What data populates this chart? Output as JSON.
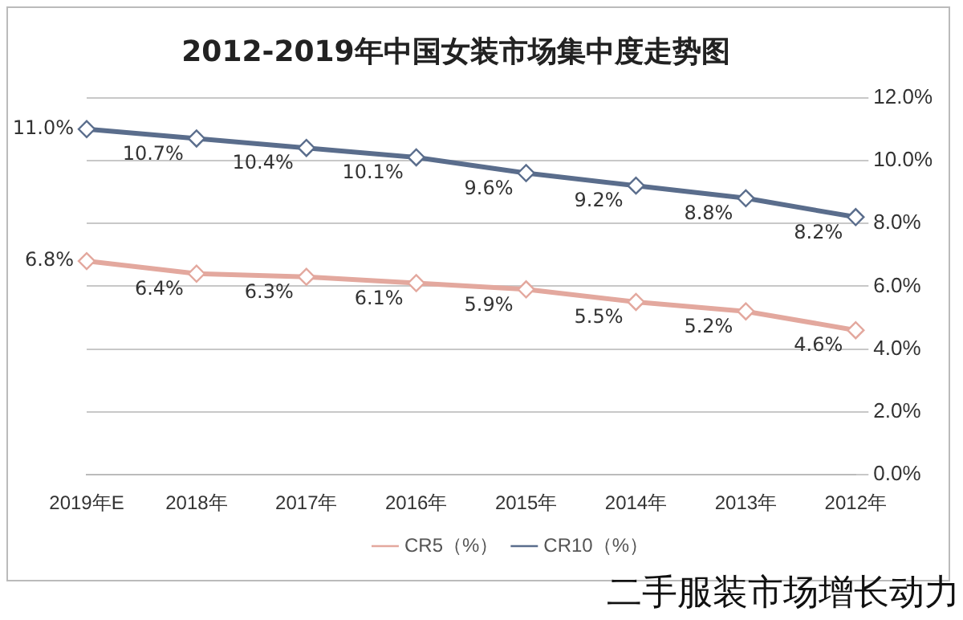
{
  "chart_data": {
    "type": "line",
    "title": "2012-2019年中国女装市场集中度走势图",
    "categories": [
      "2019年E",
      "2018年",
      "2017年",
      "2016年",
      "2015年",
      "2014年",
      "2013年",
      "2012年"
    ],
    "series": [
      {
        "name": "CR5（%）",
        "color": "#e3a89e",
        "values": [
          6.8,
          6.4,
          6.3,
          6.1,
          5.9,
          5.5,
          5.2,
          4.6
        ],
        "value_labels": [
          "6.8%",
          "6.4%",
          "6.3%",
          "6.1%",
          "5.9%",
          "5.5%",
          "5.2%",
          "4.6%"
        ]
      },
      {
        "name": "CR10（%）",
        "color": "#5a6d8c",
        "values": [
          11.0,
          10.7,
          10.4,
          10.1,
          9.6,
          9.2,
          8.8,
          8.2
        ],
        "value_labels": [
          "11.0%",
          "10.7%",
          "10.4%",
          "10.1%",
          "9.6%",
          "9.2%",
          "8.8%",
          "8.2%"
        ]
      }
    ],
    "ylim": [
      0,
      12
    ],
    "yticks": [
      {
        "value": 0,
        "label": "0.0%"
      },
      {
        "value": 2,
        "label": "2.0%"
      },
      {
        "value": 4,
        "label": "4.0%"
      },
      {
        "value": 6,
        "label": "6.0%"
      },
      {
        "value": 8,
        "label": "8.0%"
      },
      {
        "value": 10,
        "label": "10.0%"
      },
      {
        "value": 12,
        "label": "12.0%"
      }
    ],
    "grid": "y",
    "legend": "bottom",
    "marker": "diamond",
    "line_style": "solid",
    "annotations": [
      "二手服装市场增长动力"
    ]
  }
}
